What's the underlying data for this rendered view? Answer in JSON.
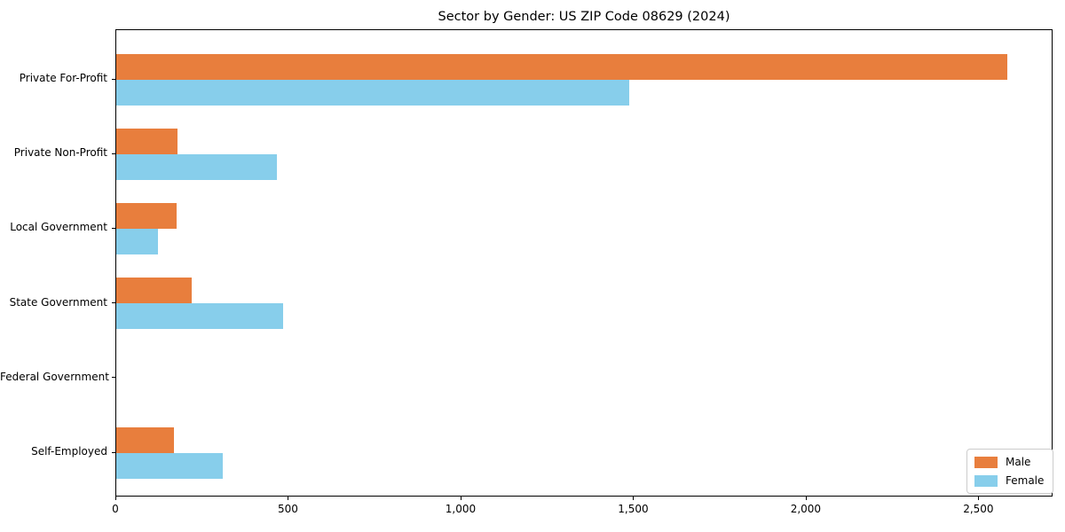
{
  "chart_data": {
    "type": "bar",
    "orientation": "horizontal",
    "title": "Sector by Gender: US ZIP Code 08629 (2024)",
    "categories": [
      "Private For-Profit",
      "Private Non-Profit",
      "Local Government",
      "State Government",
      "Federal Government",
      "Self-Employed"
    ],
    "series": [
      {
        "name": "Male",
        "color": "#E87E3D",
        "values": [
          2585,
          178,
          175,
          220,
          0,
          167
        ]
      },
      {
        "name": "Female",
        "color": "#87CEEB",
        "values": [
          1490,
          467,
          122,
          483,
          0,
          308
        ]
      }
    ],
    "xlabel": "",
    "ylabel": "",
    "xlim": [
      0,
      2715
    ],
    "x_ticks": {
      "values": [
        0,
        500,
        1000,
        1500,
        2000,
        2500
      ],
      "labels": [
        "0",
        "500",
        "1,000",
        "1,500",
        "2,000",
        "2,500"
      ]
    },
    "grid": false,
    "legend": {
      "position": "lower right",
      "entries": [
        "Male",
        "Female"
      ]
    },
    "colors": {
      "male": "#E87E3D",
      "female": "#87CEEB",
      "axis": "#000000",
      "background": "#ffffff",
      "legend_border": "#cccccc"
    }
  }
}
